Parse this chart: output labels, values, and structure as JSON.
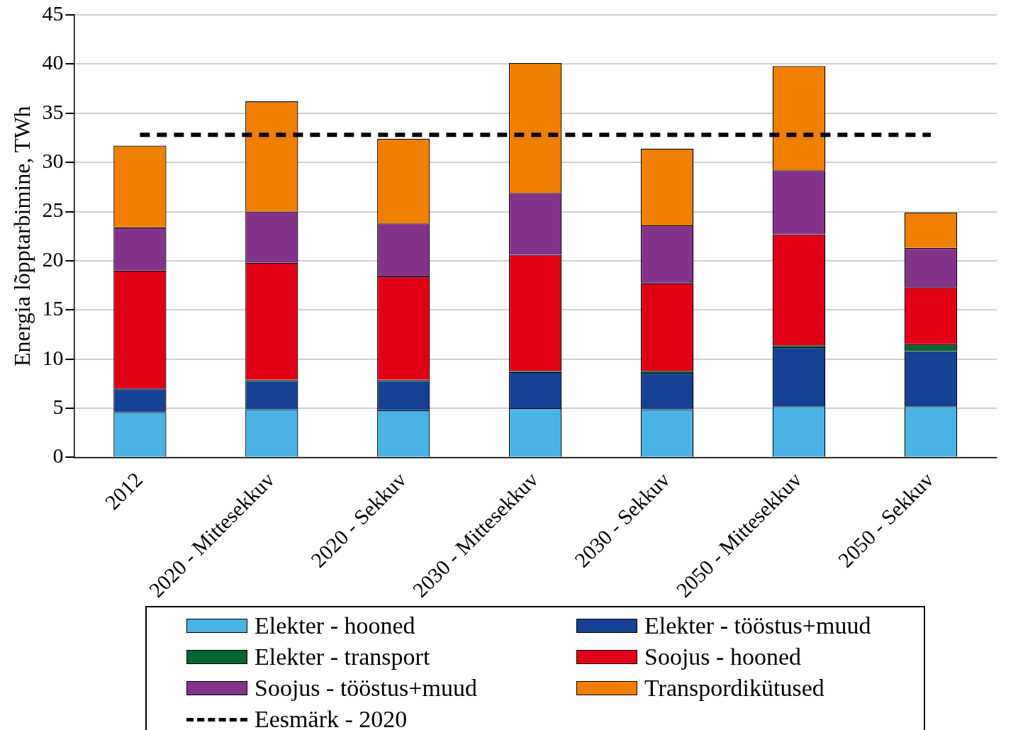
{
  "chart_data": {
    "type": "bar",
    "stacked": true,
    "ylabel": "Energia lõpptarbimine, TWh",
    "categories": [
      "2012",
      "2020 - Mittesekkuv",
      "2020 - Sekkuv",
      "2030 - Mittesekkuv",
      "2030 - Sekkuv",
      "2050 - Mittesekkuv",
      "2050 - Sekkuv"
    ],
    "series": [
      {
        "name": "Elekter - hooned",
        "color": "#49b3e6",
        "values": [
          4.6,
          4.9,
          4.8,
          5.0,
          4.9,
          5.2,
          5.2
        ]
      },
      {
        "name": "Elekter - tööstus+muud",
        "color": "#164194",
        "values": [
          2.4,
          2.9,
          3.0,
          3.7,
          3.7,
          6.0,
          5.6
        ]
      },
      {
        "name": "Elekter - transport",
        "color": "#006633",
        "values": [
          0,
          0.1,
          0.1,
          0.1,
          0.2,
          0.2,
          0.7
        ]
      },
      {
        "name": "Soojus - hooned",
        "color": "#e10016",
        "values": [
          12.0,
          11.9,
          10.5,
          11.8,
          8.9,
          11.3,
          5.8
        ]
      },
      {
        "name": "Soojus - tööstus+muud",
        "color": "#84338b",
        "values": [
          4.4,
          5.2,
          5.4,
          6.3,
          5.9,
          6.5,
          4.0
        ]
      },
      {
        "name": "Transpordikütused",
        "color": "#f07f00",
        "values": [
          8.3,
          11.2,
          8.6,
          13.2,
          7.8,
          10.6,
          3.6
        ]
      },
      {
        "name": "Eesmärk - 2020",
        "type": "line",
        "color": "#000000",
        "line_style": "dashed",
        "marker": "none",
        "values": [
          32.8,
          32.8,
          32.8,
          32.8,
          32.8,
          32.8,
          32.8
        ]
      }
    ],
    "ylim": [
      0,
      45
    ],
    "yticks": [
      0,
      5,
      10,
      15,
      20,
      25,
      30,
      35,
      40,
      45
    ],
    "grid": "y",
    "legend": "bottom"
  }
}
